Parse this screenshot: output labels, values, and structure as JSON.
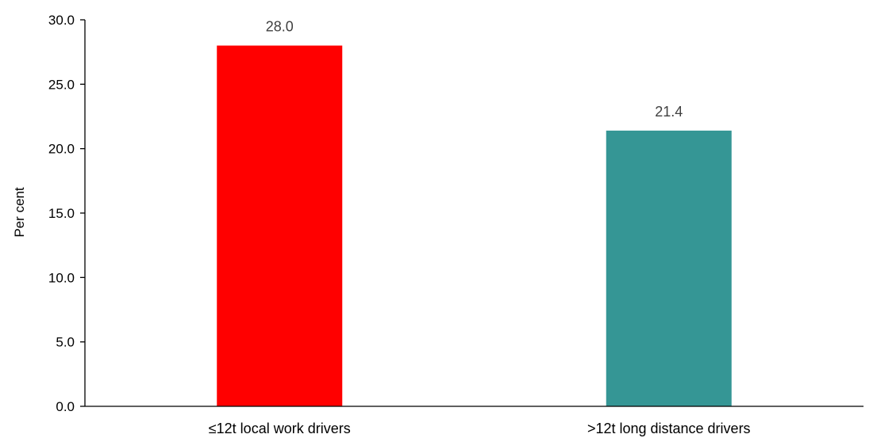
{
  "chart_data": {
    "type": "bar",
    "categories": [
      "≤12t local work drivers",
      ">12t long distance drivers"
    ],
    "values": [
      28.0,
      21.4
    ],
    "data_labels": [
      "28.0",
      "21.4"
    ],
    "colors": [
      "#FF0000",
      "#359695"
    ],
    "title": "",
    "xlabel": "",
    "ylabel": "Per cent",
    "ylim": [
      0,
      30
    ],
    "yticks": [
      0,
      5,
      10,
      15,
      20,
      25,
      30
    ],
    "ytick_labels": [
      "0.0",
      "5.0",
      "10.0",
      "15.0",
      "20.0",
      "25.0",
      "30.0"
    ],
    "grid": false,
    "legend": "none"
  }
}
